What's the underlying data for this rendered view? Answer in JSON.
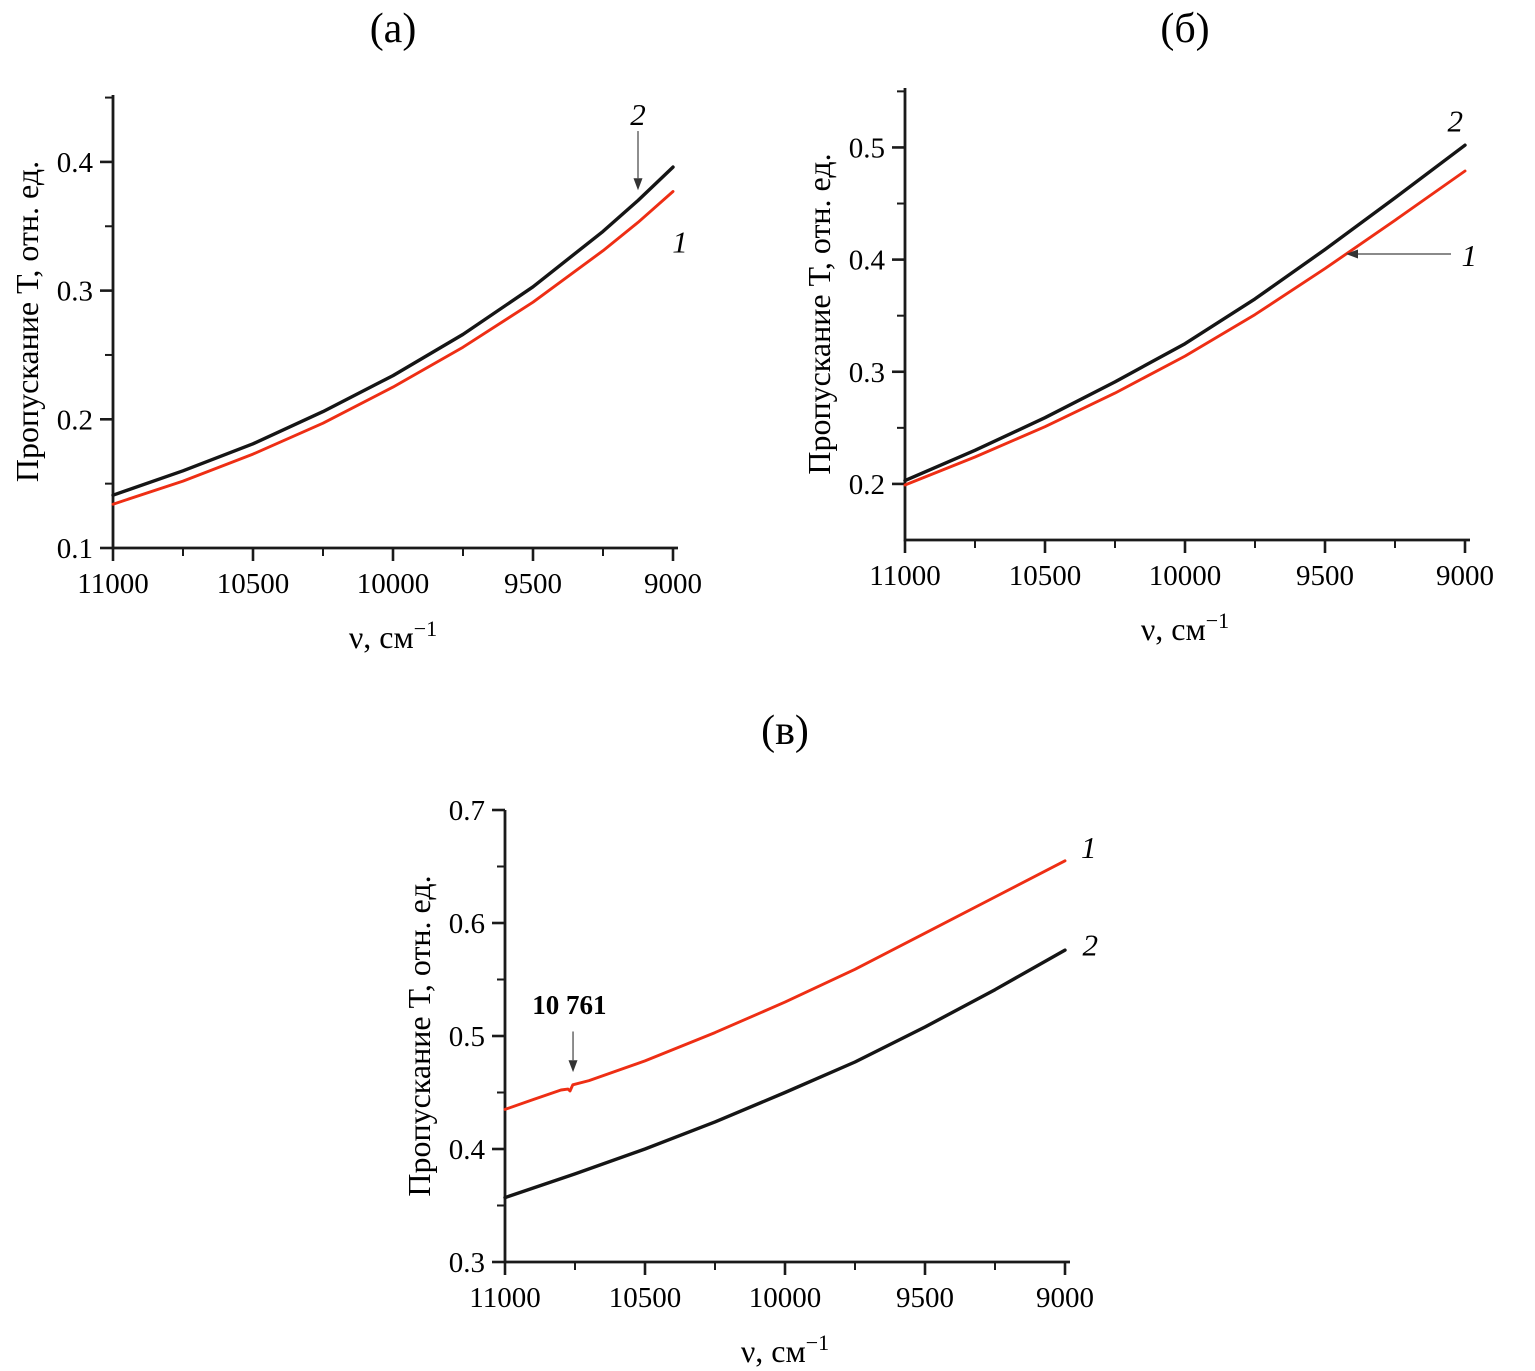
{
  "palette": {
    "curve_black": "#151515",
    "curve_red": "#ee2e14",
    "axis": "#1a1a1a",
    "arrow_line": "#7a7a7a",
    "arrow_head": "#333333"
  },
  "chart_data": [
    {
      "id": "a",
      "type": "line",
      "title": "(а)",
      "xlabel_base": "ν, см",
      "xlabel_sup": "−1",
      "ylabel": "Пропускание Т, отн. ед.",
      "x_range": [
        11000,
        9000
      ],
      "y_range": [
        0.1,
        0.452
      ],
      "x_ticks_major": [
        11000,
        10500,
        10000,
        9500,
        9000
      ],
      "x_tick_labels": [
        "11000",
        "10500",
        "10000",
        "9500",
        "9000"
      ],
      "x_ticks_minor": [
        10750,
        10250,
        9750,
        9250
      ],
      "y_ticks_major": [
        0.1,
        0.2,
        0.3,
        0.4
      ],
      "y_tick_labels": [
        "0.1",
        "0.2",
        "0.3",
        "0.4"
      ],
      "y_ticks_minor": [
        0.15,
        0.25,
        0.35,
        0.45
      ],
      "grid": false,
      "series": [
        {
          "name": "2",
          "color": "#151515",
          "width": 3.4,
          "points": [
            [
              11000,
              0.141
            ],
            [
              10750,
              0.16
            ],
            [
              10500,
              0.181
            ],
            [
              10250,
              0.206
            ],
            [
              10000,
              0.234
            ],
            [
              9750,
              0.266
            ],
            [
              9500,
              0.303
            ],
            [
              9250,
              0.346
            ],
            [
              9125,
              0.37
            ],
            [
              9000,
              0.396
            ]
          ]
        },
        {
          "name": "1",
          "color": "#ee2e14",
          "width": 2.9,
          "points": [
            [
              11000,
              0.134
            ],
            [
              10750,
              0.152
            ],
            [
              10500,
              0.173
            ],
            [
              10250,
              0.197
            ],
            [
              10000,
              0.225
            ],
            [
              9750,
              0.256
            ],
            [
              9500,
              0.291
            ],
            [
              9250,
              0.331
            ],
            [
              9125,
              0.353
            ],
            [
              9000,
              0.377
            ]
          ]
        }
      ],
      "annotations": [
        {
          "type": "text",
          "text": "2",
          "style": "italic-serif",
          "size": 31,
          "x": 9125,
          "y": 0.437
        },
        {
          "type": "arrow",
          "x1": 9125,
          "y1": 0.424,
          "x2": 9125,
          "y2": 0.378
        },
        {
          "type": "text",
          "text": "1",
          "style": "italic-serif",
          "size": 31,
          "x": 8975,
          "y": 0.338
        }
      ]
    },
    {
      "id": "b",
      "type": "line",
      "title": "(б)",
      "xlabel_base": "ν, см",
      "xlabel_sup": "−1",
      "ylabel": "Пропускание Т, отн. ед.",
      "x_range": [
        11000,
        9000
      ],
      "y_range": [
        0.15,
        0.553
      ],
      "x_ticks_major": [
        11000,
        10500,
        10000,
        9500,
        9000
      ],
      "x_tick_labels": [
        "11000",
        "10500",
        "10000",
        "9500",
        "9000"
      ],
      "x_ticks_minor": [
        10750,
        10250,
        9750,
        9250
      ],
      "y_ticks_major": [
        0.2,
        0.3,
        0.4,
        0.5
      ],
      "y_tick_labels": [
        "0.2",
        "0.3",
        "0.4",
        "0.5"
      ],
      "y_ticks_minor": [
        0.25,
        0.35,
        0.45,
        0.55
      ],
      "grid": false,
      "series": [
        {
          "name": "2",
          "color": "#151515",
          "width": 3.4,
          "points": [
            [
              11000,
              0.203
            ],
            [
              10750,
              0.23
            ],
            [
              10500,
              0.259
            ],
            [
              10250,
              0.291
            ],
            [
              10000,
              0.325
            ],
            [
              9750,
              0.365
            ],
            [
              9500,
              0.409
            ],
            [
              9250,
              0.455
            ],
            [
              9000,
              0.502
            ]
          ]
        },
        {
          "name": "1",
          "color": "#ee2e14",
          "width": 2.9,
          "points": [
            [
              11000,
              0.199
            ],
            [
              10750,
              0.224
            ],
            [
              10500,
              0.251
            ],
            [
              10250,
              0.281
            ],
            [
              10000,
              0.314
            ],
            [
              9750,
              0.351
            ],
            [
              9500,
              0.392
            ],
            [
              9250,
              0.435
            ],
            [
              9000,
              0.479
            ]
          ]
        }
      ],
      "annotations": [
        {
          "type": "text",
          "text": "2",
          "style": "italic-serif",
          "size": 31,
          "x": 9035,
          "y": 0.524
        },
        {
          "type": "arrow",
          "x1": 9050,
          "y1": 0.405,
          "x2": 9425,
          "y2": 0.405
        },
        {
          "type": "text",
          "text": "1",
          "style": "italic-serif",
          "size": 31,
          "x": 8985,
          "y": 0.404
        }
      ]
    },
    {
      "id": "v",
      "type": "line",
      "title": "(в)",
      "xlabel_base": "ν, см",
      "xlabel_sup": "−1",
      "ylabel": "Пропускание Т, отн. ед.",
      "x_range": [
        11000,
        9000
      ],
      "y_range": [
        0.3,
        0.7
      ],
      "x_ticks_major": [
        11000,
        10500,
        10000,
        9500,
        9000
      ],
      "x_tick_labels": [
        "11000",
        "10500",
        "10000",
        "9500",
        "9000"
      ],
      "x_ticks_minor": [
        10750,
        10250,
        9750,
        9250
      ],
      "y_ticks_major": [
        0.3,
        0.4,
        0.5,
        0.6,
        0.7
      ],
      "y_tick_labels": [
        "0.3",
        "0.4",
        "0.5",
        "0.6",
        "0.7"
      ],
      "y_ticks_minor": [
        0.35,
        0.45,
        0.55,
        0.65
      ],
      "grid": false,
      "series": [
        {
          "name": "1",
          "color": "#ee2e14",
          "width": 2.9,
          "points": [
            [
              11000,
              0.435
            ],
            [
              10900,
              0.4437
            ],
            [
              10800,
              0.4522
            ],
            [
              10775,
              0.453
            ],
            [
              10768,
              0.4513
            ],
            [
              10758,
              0.4568
            ],
            [
              10700,
              0.4605
            ],
            [
              10600,
              0.4692
            ],
            [
              10500,
              0.478
            ],
            [
              10250,
              0.503
            ],
            [
              10000,
              0.53
            ],
            [
              9750,
              0.559
            ],
            [
              9500,
              0.591
            ],
            [
              9250,
              0.623
            ],
            [
              9000,
              0.655
            ]
          ]
        },
        {
          "name": "2",
          "color": "#151515",
          "width": 3.4,
          "points": [
            [
              11000,
              0.357
            ],
            [
              10750,
              0.378
            ],
            [
              10500,
              0.4
            ],
            [
              10250,
              0.424
            ],
            [
              10000,
              0.45
            ],
            [
              9750,
              0.477
            ],
            [
              9500,
              0.508
            ],
            [
              9250,
              0.541
            ],
            [
              9000,
              0.576
            ]
          ]
        }
      ],
      "annotations": [
        {
          "type": "text",
          "text": "1",
          "style": "italic-serif",
          "size": 31,
          "x": 8915,
          "y": 0.667
        },
        {
          "type": "text",
          "text": "2",
          "style": "italic-serif",
          "size": 31,
          "x": 8910,
          "y": 0.581
        },
        {
          "type": "text",
          "text": "10 761",
          "style": "bold-sans",
          "size": 27,
          "x": 10770,
          "y": 0.528
        },
        {
          "type": "arrow",
          "x1": 10757,
          "y1": 0.504,
          "x2": 10757,
          "y2": 0.468
        }
      ]
    }
  ]
}
